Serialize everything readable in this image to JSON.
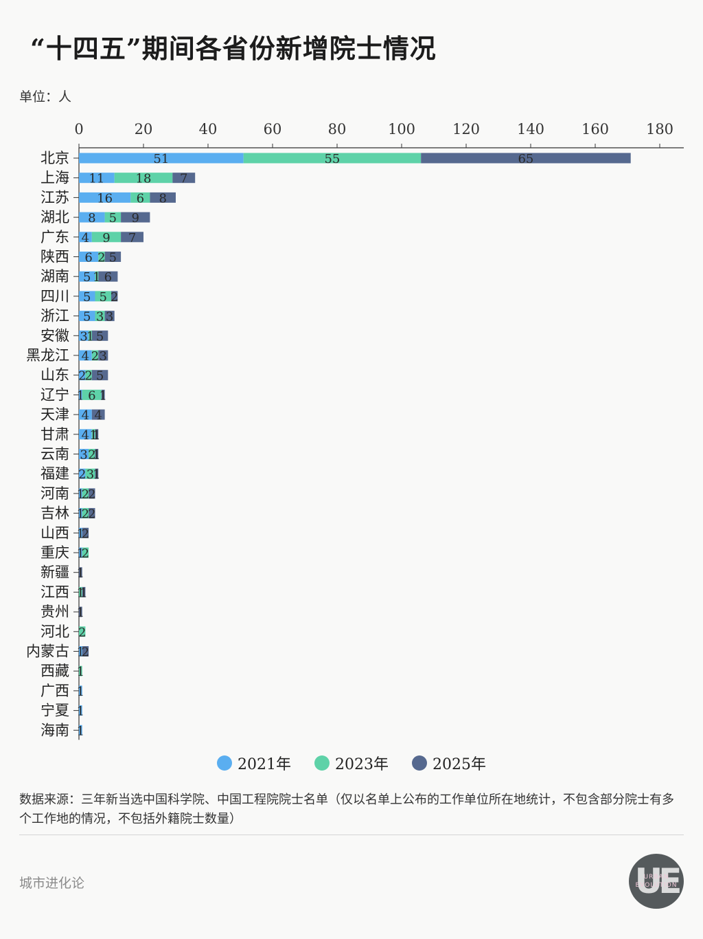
{
  "title": "“十四五”期间各省份新增院士情况",
  "unit_label": "单位：人",
  "note": "数据来源：三年新当选中国科学院、中国工程院院士名单（仅以名单上公布的工作单位所在地统计，不包含部分院士有多个工作地的情况，不包括外籍院士数量）",
  "footer": "城市进化论",
  "logo": {
    "letters": "UE",
    "line1": "URBAN",
    "line2": "EVOLUTION"
  },
  "colors": {
    "s2021": "#5aaef0",
    "s2023": "#5ed2a8",
    "s2025": "#56698f"
  },
  "chart_data": {
    "type": "bar",
    "orientation": "horizontal",
    "stacked": true,
    "xlim": [
      0,
      180
    ],
    "xticks": [
      0,
      20,
      40,
      60,
      80,
      100,
      120,
      140,
      160,
      180
    ],
    "categories": [
      "北京",
      "上海",
      "江苏",
      "湖北",
      "广东",
      "陕西",
      "湖南",
      "四川",
      "浙江",
      "安徽",
      "黑龙江",
      "山东",
      "辽宁",
      "天津",
      "甘肃",
      "云南",
      "福建",
      "河南",
      "吉林",
      "山西",
      "重庆",
      "新疆",
      "江西",
      "贵州",
      "河北",
      "内蒙古",
      "西藏",
      "广西",
      "宁夏",
      "海南"
    ],
    "series": [
      {
        "name": "2021年",
        "values": [
          51,
          11,
          16,
          8,
          4,
          6,
          5,
          5,
          5,
          3,
          4,
          2,
          1,
          4,
          4,
          3,
          2,
          1,
          1,
          1,
          1,
          0,
          0,
          0,
          0,
          1,
          0,
          1,
          1,
          1
        ]
      },
      {
        "name": "2023年",
        "values": [
          55,
          18,
          6,
          5,
          9,
          2,
          1,
          5,
          3,
          1,
          2,
          2,
          6,
          0,
          1,
          2,
          3,
          2,
          2,
          0,
          2,
          0,
          1,
          0,
          2,
          0,
          1,
          0,
          0,
          0
        ]
      },
      {
        "name": "2025年",
        "values": [
          65,
          7,
          8,
          9,
          7,
          5,
          6,
          2,
          3,
          5,
          3,
          5,
          1,
          4,
          1,
          1,
          1,
          2,
          2,
          2,
          0,
          1,
          1,
          1,
          0,
          2,
          0,
          0,
          0,
          0
        ]
      }
    ],
    "legend_position": "bottom"
  }
}
